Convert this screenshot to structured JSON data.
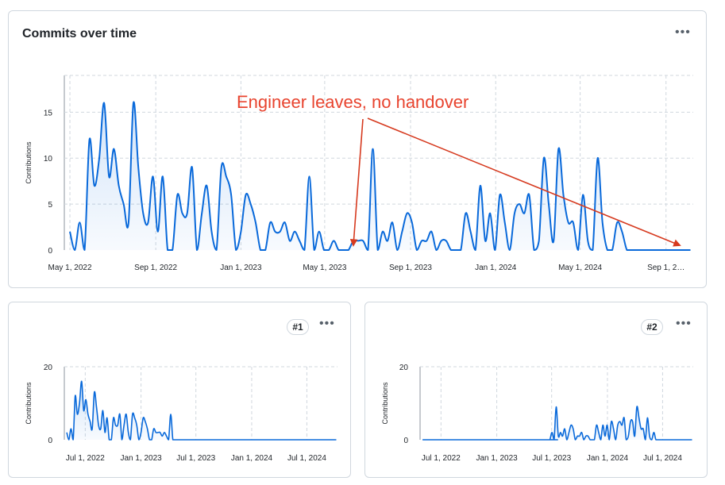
{
  "main": {
    "title": "Commits over time",
    "menu_icon": "kebab-horizontal-icon",
    "annotation": "Engineer leaves, no handover",
    "annotation_color": "#e8432e",
    "line_color": "#0969da"
  },
  "panel1": {
    "badge": "#1",
    "menu_icon": "kebab-horizontal-icon"
  },
  "panel2": {
    "badge": "#2",
    "menu_icon": "kebab-horizontal-icon"
  },
  "chart_data": [
    {
      "type": "area",
      "title": "Commits over time",
      "ylabel": "Contributions",
      "xlabel": "",
      "ylim": [
        0,
        19
      ],
      "xlim": [
        "2022-04-23",
        "2024-10-10"
      ],
      "yticks": [
        0,
        5,
        10,
        15
      ],
      "xticks": [
        "2022-05-01",
        "2022-09-01",
        "2023-01-01",
        "2023-05-01",
        "2023-09-01",
        "2024-01-01",
        "2024-05-01",
        "2024-09-01"
      ],
      "xtick_labels": [
        "May 1, 2022",
        "Sep 1, 2022",
        "Jan 1, 2023",
        "May 1, 2023",
        "Sep 1, 2023",
        "Jan 1, 2024",
        "May 1, 2024",
        "Sep 1, 2…"
      ],
      "grid": true,
      "series": [
        {
          "x": [
            "2022-05-01",
            "2022-05-08",
            "2022-05-15",
            "2022-05-22",
            "2022-05-29",
            "2022-06-05",
            "2022-06-12",
            "2022-06-19",
            "2022-06-26",
            "2022-07-03",
            "2022-07-10",
            "2022-07-17",
            "2022-07-24",
            "2022-07-31",
            "2022-08-07",
            "2022-08-14",
            "2022-08-21",
            "2022-08-28",
            "2022-09-04",
            "2022-09-11",
            "2022-09-18",
            "2022-09-25",
            "2022-10-02",
            "2022-10-09",
            "2022-10-16",
            "2022-10-23",
            "2022-10-30",
            "2022-11-06",
            "2022-11-13",
            "2022-11-20",
            "2022-11-27",
            "2022-12-04",
            "2022-12-11",
            "2022-12-18",
            "2022-12-25",
            "2023-01-01",
            "2023-01-08",
            "2023-01-15",
            "2023-01-22",
            "2023-01-29",
            "2023-02-05",
            "2023-02-12",
            "2023-02-19",
            "2023-02-26",
            "2023-03-05",
            "2023-03-12",
            "2023-03-19",
            "2023-03-26",
            "2023-04-02",
            "2023-04-09",
            "2023-04-16",
            "2023-04-23",
            "2023-04-30",
            "2023-05-07",
            "2023-05-14",
            "2023-05-21",
            "2023-05-28",
            "2023-06-04",
            "2023-06-11",
            "2023-06-18",
            "2023-06-25",
            "2023-07-02",
            "2023-07-09",
            "2023-07-16",
            "2023-07-23",
            "2023-07-30",
            "2023-08-06",
            "2023-08-13",
            "2023-08-20",
            "2023-08-27",
            "2023-09-03",
            "2023-09-10",
            "2023-09-17",
            "2023-09-24",
            "2023-10-01",
            "2023-10-08",
            "2023-10-15",
            "2023-10-22",
            "2023-10-29",
            "2023-11-05",
            "2023-11-12",
            "2023-11-19",
            "2023-11-26",
            "2023-12-03",
            "2023-12-10",
            "2023-12-17",
            "2023-12-24",
            "2023-12-31",
            "2024-01-07",
            "2024-01-14",
            "2024-01-21",
            "2024-01-28",
            "2024-02-04",
            "2024-02-11",
            "2024-02-18",
            "2024-02-25",
            "2024-03-03",
            "2024-03-10",
            "2024-03-17",
            "2024-03-24",
            "2024-03-31",
            "2024-04-07",
            "2024-04-14",
            "2024-04-21",
            "2024-04-28",
            "2024-05-05",
            "2024-05-12",
            "2024-05-19",
            "2024-05-26",
            "2024-06-02",
            "2024-06-09",
            "2024-06-16",
            "2024-06-23",
            "2024-06-30",
            "2024-07-07",
            "2024-07-14",
            "2024-07-21",
            "2024-07-28",
            "2024-08-04",
            "2024-08-11",
            "2024-08-18",
            "2024-08-25",
            "2024-09-01",
            "2024-09-08",
            "2024-09-15",
            "2024-09-22",
            "2024-09-29",
            "2024-10-06"
          ],
          "y": [
            2,
            0,
            3,
            0,
            12,
            7,
            10,
            16,
            8,
            11,
            7,
            5,
            3,
            16,
            9,
            4,
            3,
            8,
            2,
            8,
            0,
            0,
            6,
            4,
            4,
            9,
            0,
            4,
            7,
            2,
            0,
            9,
            8,
            6,
            0,
            2,
            6,
            5,
            3,
            0,
            0,
            3,
            2,
            2,
            3,
            1,
            2,
            1,
            0,
            8,
            0,
            2,
            0,
            0,
            1,
            0,
            0,
            0,
            1,
            1,
            1,
            0,
            11,
            0,
            2,
            1,
            3,
            0,
            2,
            4,
            3,
            0,
            1,
            1,
            2,
            0,
            1,
            1,
            0,
            0,
            0,
            4,
            2,
            0,
            7,
            1,
            4,
            0,
            6,
            3,
            0,
            4,
            5,
            4,
            6,
            0,
            1,
            10,
            5,
            1,
            11,
            6,
            3,
            3,
            0,
            6,
            1,
            0,
            10,
            3,
            0,
            0,
            3,
            2,
            0,
            0,
            0,
            0,
            0,
            0,
            0,
            0,
            0,
            0,
            0,
            0,
            0,
            0
          ]
        }
      ],
      "annotation": "Engineer leaves, no handover"
    },
    {
      "type": "area",
      "title": "#1",
      "ylabel": "Contributions",
      "ylim": [
        0,
        20
      ],
      "yticks": [
        0,
        20
      ],
      "xlim": [
        "2022-04-23",
        "2024-10-10"
      ],
      "xticks": [
        "2022-07-01",
        "2023-01-01",
        "2023-07-01",
        "2024-01-01",
        "2024-07-01"
      ],
      "xtick_labels": [
        "Jul 1, 2022",
        "Jan 1, 2023",
        "Jul 1, 2023",
        "Jan 1, 2024",
        "Jul 1, 2024"
      ],
      "grid": true,
      "series": [
        {
          "x": [
            "2022-05-01",
            "2022-05-08",
            "2022-05-15",
            "2022-05-22",
            "2022-05-29",
            "2022-06-05",
            "2022-06-12",
            "2022-06-19",
            "2022-06-26",
            "2022-07-03",
            "2022-07-10",
            "2022-07-17",
            "2022-07-24",
            "2022-07-31",
            "2022-08-07",
            "2022-08-14",
            "2022-08-21",
            "2022-08-28",
            "2022-09-04",
            "2022-09-11",
            "2022-09-18",
            "2022-09-25",
            "2022-10-02",
            "2022-10-09",
            "2022-10-16",
            "2022-10-23",
            "2022-10-30",
            "2022-11-06",
            "2022-11-13",
            "2022-11-20",
            "2022-11-27",
            "2022-12-04",
            "2022-12-11",
            "2022-12-18",
            "2022-12-25",
            "2023-01-01",
            "2023-01-08",
            "2023-01-15",
            "2023-01-22",
            "2023-01-29",
            "2023-02-05",
            "2023-02-12",
            "2023-02-19",
            "2023-02-26",
            "2023-03-05",
            "2023-03-12",
            "2023-03-19",
            "2023-03-26",
            "2023-04-02",
            "2023-04-09",
            "2023-04-16",
            "2023-04-23",
            "2023-04-30",
            "2023-05-07",
            "2023-05-14",
            "2023-05-21",
            "2023-05-28",
            "2024-10-06"
          ],
          "y": [
            2,
            0,
            3,
            0,
            12,
            7,
            10,
            16,
            8,
            11,
            7,
            5,
            3,
            13,
            9,
            4,
            3,
            8,
            2,
            6,
            0,
            0,
            6,
            4,
            4,
            7,
            0,
            4,
            7,
            2,
            0,
            7,
            6,
            4,
            0,
            2,
            6,
            5,
            3,
            0,
            0,
            3,
            2,
            2,
            2,
            1,
            2,
            1,
            0,
            7,
            0,
            0,
            0,
            0,
            0,
            0,
            0,
            0
          ]
        }
      ]
    },
    {
      "type": "area",
      "title": "#2",
      "ylabel": "Contributions",
      "ylim": [
        0,
        20
      ],
      "yticks": [
        0,
        20
      ],
      "xlim": [
        "2022-04-23",
        "2024-10-10"
      ],
      "xticks": [
        "2022-07-01",
        "2023-01-01",
        "2023-07-01",
        "2024-01-01",
        "2024-07-01"
      ],
      "xtick_labels": [
        "Jul 1, 2022",
        "Jan 1, 2023",
        "Jul 1, 2023",
        "Jan 1, 2024",
        "Jul 1, 2024"
      ],
      "grid": true,
      "series": [
        {
          "x": [
            "2022-05-01",
            "2023-06-18",
            "2023-06-25",
            "2023-07-02",
            "2023-07-09",
            "2023-07-16",
            "2023-07-23",
            "2023-07-30",
            "2023-08-06",
            "2023-08-13",
            "2023-08-20",
            "2023-08-27",
            "2023-09-03",
            "2023-09-10",
            "2023-09-17",
            "2023-09-24",
            "2023-10-01",
            "2023-10-08",
            "2023-10-15",
            "2023-10-22",
            "2023-10-29",
            "2023-11-05",
            "2023-11-12",
            "2023-11-19",
            "2023-11-26",
            "2023-12-03",
            "2023-12-10",
            "2023-12-17",
            "2023-12-24",
            "2023-12-31",
            "2024-01-07",
            "2024-01-14",
            "2024-01-21",
            "2024-01-28",
            "2024-02-04",
            "2024-02-11",
            "2024-02-18",
            "2024-02-25",
            "2024-03-03",
            "2024-03-10",
            "2024-03-17",
            "2024-03-24",
            "2024-03-31",
            "2024-04-07",
            "2024-04-14",
            "2024-04-21",
            "2024-04-28",
            "2024-05-05",
            "2024-05-12",
            "2024-05-19",
            "2024-05-26",
            "2024-06-02",
            "2024-06-09",
            "2024-06-16",
            "2024-06-23",
            "2024-06-30",
            "2024-07-07",
            "2024-07-14",
            "2024-07-21",
            "2024-07-28",
            "2024-10-06"
          ],
          "y": [
            0,
            0,
            0,
            2,
            0,
            9,
            1,
            2,
            1,
            3,
            0,
            2,
            4,
            3,
            0,
            1,
            1,
            2,
            0,
            1,
            1,
            0,
            0,
            0,
            4,
            2,
            0,
            4,
            1,
            4,
            0,
            5,
            3,
            0,
            4,
            5,
            4,
            6,
            0,
            1,
            5,
            5,
            1,
            9,
            6,
            3,
            3,
            0,
            6,
            1,
            0,
            2,
            0,
            0,
            0,
            0,
            0,
            0,
            0,
            0,
            0
          ]
        }
      ]
    }
  ]
}
